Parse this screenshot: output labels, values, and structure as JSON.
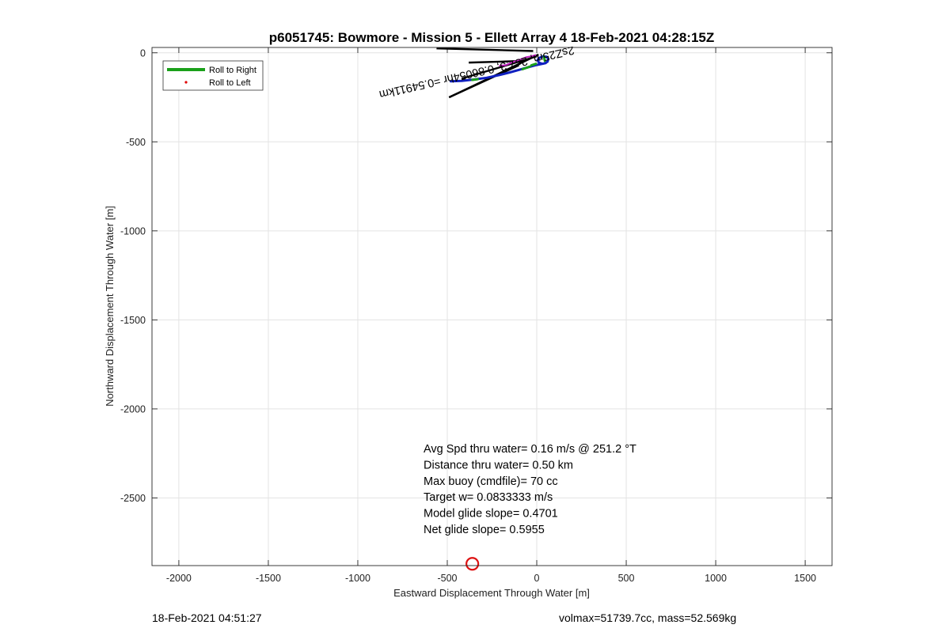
{
  "chart_data": {
    "type": "line",
    "title": "p6051745: Bowmore - Mission 5 - Ellett Array 4 18-Feb-2021 04:28:15Z",
    "xlabel": "Eastward Displacement Through Water [m]",
    "ylabel": "Northward Displacement Through Water [m]",
    "xlim": [
      -2150,
      1650
    ],
    "ylim": [
      -2880,
      30
    ],
    "xticks": [
      -2000,
      -1500,
      -1000,
      -500,
      0,
      500,
      1000,
      1500
    ],
    "yticks": [
      0,
      -500,
      -1000,
      -1500,
      -2000,
      -2500
    ],
    "xtick_labels": [
      "-2000",
      "-1500",
      "-1000",
      "-500",
      "0",
      "500",
      "1000",
      "1500"
    ],
    "ytick_labels": [
      "0",
      "-500",
      "-1000",
      "-1500",
      "-2000",
      "-2500"
    ],
    "grid": true,
    "legend_position": "top-left",
    "legend": [
      {
        "label": "Roll to Right",
        "color": "#1aa01a",
        "marker": "line"
      },
      {
        "label": "Roll to Left",
        "color": "#e00000",
        "marker": "dot"
      }
    ],
    "track": {
      "color": "#1020c0",
      "points": [
        [
          -480,
          -160
        ],
        [
          -420,
          -158
        ],
        [
          -350,
          -150
        ],
        [
          -280,
          -140
        ],
        [
          -210,
          -125
        ],
        [
          -150,
          -110
        ],
        [
          -95,
          -95
        ],
        [
          -45,
          -80
        ],
        [
          0,
          -68
        ],
        [
          40,
          -60
        ],
        [
          60,
          -50
        ],
        [
          65,
          -35
        ],
        [
          55,
          -22
        ],
        [
          35,
          -20
        ],
        [
          15,
          -28
        ],
        [
          5,
          -40
        ],
        [
          12,
          -55
        ],
        [
          30,
          -62
        ],
        [
          50,
          -58
        ]
      ]
    },
    "roll_right_segments": [
      [
        [
          -80,
          -92
        ],
        [
          -40,
          -78
        ]
      ],
      [
        [
          -360,
          -152
        ],
        [
          -330,
          -148
        ]
      ],
      [
        [
          40,
          -20
        ],
        [
          45,
          -45
        ]
      ],
      [
        [
          -30,
          -70
        ],
        [
          -5,
          -62
        ]
      ]
    ],
    "vector_line": [
      [
        -490,
        -250
      ],
      [
        10,
        -10
      ]
    ],
    "heading_lines": [
      [
        [
          -560,
          25
        ],
        [
          -20,
          10
        ]
      ],
      [
        [
          -490,
          -250
        ],
        [
          -100,
          -70
        ]
      ],
      [
        [
          -420,
          -145
        ],
        [
          0,
          -20
        ]
      ],
      [
        [
          -380,
          -55
        ],
        [
          -60,
          -45
        ]
      ]
    ],
    "magenta_path": {
      "color": "#c020c0",
      "points": [
        [
          -210,
          -72
        ],
        [
          -175,
          -70
        ],
        [
          -140,
          -55
        ],
        [
          -100,
          -40
        ],
        [
          -60,
          -25
        ],
        [
          -25,
          -18
        ],
        [
          -5,
          -12
        ]
      ]
    },
    "current_position": {
      "x": -360,
      "y": -2870,
      "color": "#dd1111"
    },
    "rotated_label": {
      "text": "2sZ25m, 2s7.3, 0.86054hr =0.54911km",
      "anchor": [
        -340,
        -90
      ],
      "angle": 167
    }
  },
  "annotation_lines": [
    "Avg Spd thru water=  0.16 m/s @ 251.2 °T",
    "Distance thru water=  0.50 km",
    "Max buoy (cmdfile)= 70 cc",
    "Target w= 0.0833333 m/s",
    "Model glide slope= 0.4701",
    "Net glide slope= 0.5955"
  ],
  "footer": {
    "timestamp": "18-Feb-2021 04:51:27",
    "vehicle_info": "volmax=51739.7cc, mass=52.569kg"
  }
}
